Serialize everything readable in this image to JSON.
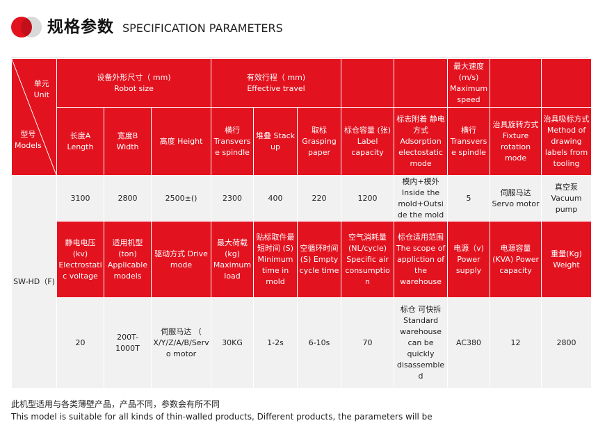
{
  "header": {
    "title_cn": "规格参数",
    "title_en": "SPECIFICATION PARAMETERS"
  },
  "table": {
    "corner_unit_cn": "单元",
    "corner_unit_en": "Unit",
    "corner_model_cn": "型号",
    "corner_model_en": "Models",
    "model_value": "SW-HD（F)",
    "groups": {
      "robot_size_cn": "设备外形尺寸（ mm)",
      "robot_size_en": "Robot size",
      "travel_cn": "有效行程（ mm)",
      "travel_en": "Effective travel",
      "max_speed": "最大速度 (m/s) Maximum speed"
    },
    "row1_headers": [
      "长度A Length",
      "宽度B Width",
      "高度 Height",
      "横行 Transverse spindle",
      "堆叠 Stack up",
      "取标 Grasping paper",
      "标仓容量 (张) Label capacity",
      "标志附着 静电方式 Adsorption electostatic mode",
      "横行 Transverse spindle",
      "治具旋转方式 Fixture rotation mode",
      "治具吸标方式 Method of drawing labels from tooling"
    ],
    "row1_values": [
      "3100",
      "2800",
      "2500±()",
      "2300",
      "400",
      "220",
      "1200",
      "模内+模外 Inside the mold+Outside the mold",
      "5",
      "伺服马达 Servo motor",
      "真空泵 Vacuum pump"
    ],
    "row2_headers": [
      "静电电压 (kv) Electrostatic voltage",
      "适用机型 (ton) Applicable models",
      "驱动方式 Drive mode",
      "最大荷载 (kg) Maximum load",
      "贴标取件最短时间 (S) Minimum time in mold",
      "空循环时间 (S) Empty cycle time",
      "空气消耗量 (NL/cycle) Specific air consumption",
      "标仓适用范围 The scope of appliction of the warehouse",
      "电源（v) Power supply",
      "电源容量 (KVA) Power capacity",
      "重量(Kg) Weight"
    ],
    "row2_values": [
      "20",
      "200T-1000T",
      "伺服马达 （ X/Y/Z/A/B/Servo motor",
      "30KG",
      "1-2s",
      "6-10s",
      "70",
      "标仓 可快拆 Standard warehouse can be quickly disassembled",
      "AC380",
      "12",
      "2800"
    ]
  },
  "footer": {
    "note_cn": "此机型适用与各类薄壁产品，产品不同，参数会有所不同",
    "note_en": "This model is suitable for all kinds of thin-walled products, Different products, the parameters will be"
  },
  "colors": {
    "accent": "#e3121f",
    "cell_gray": "#f1f1f1"
  }
}
